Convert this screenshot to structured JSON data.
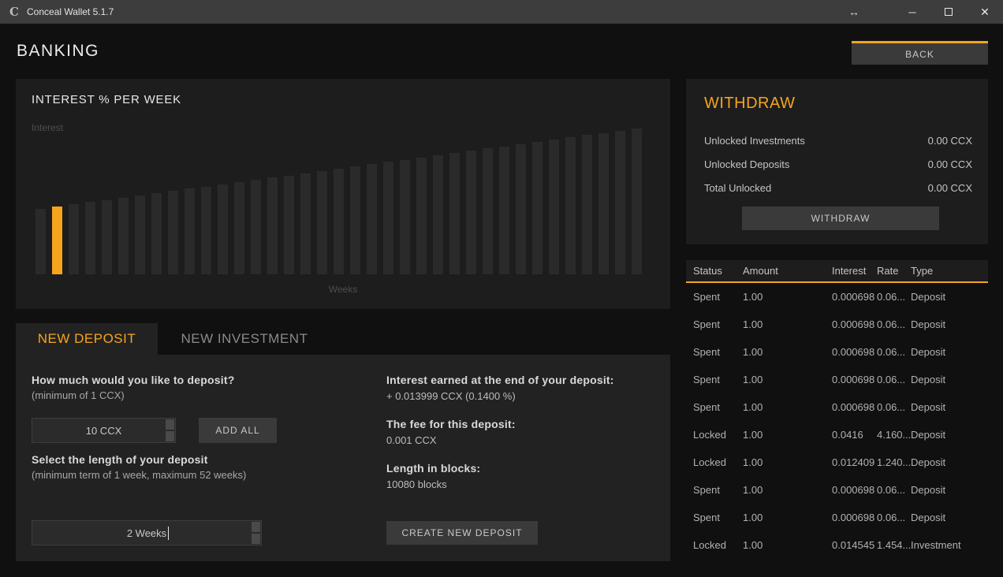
{
  "window": {
    "title": "Conceal Wallet 5.1.7",
    "logo": "C",
    "resize_icon": "↔",
    "minimize_icon": "─",
    "close_icon": "✕"
  },
  "header": {
    "title": "BANKING",
    "back_label": "BACK"
  },
  "chart": {
    "title": "INTEREST % PER WEEK",
    "ylabel": "Interest",
    "xlabel": "Weeks"
  },
  "chart_data": {
    "type": "bar",
    "title": "INTEREST % PER WEEK",
    "xlabel": "Weeks",
    "ylabel": "Interest",
    "axis_tick_labels_visible": false,
    "highlighted_week": 2,
    "highlight_color": "#f7a41d",
    "bar_color": "#2a2a2a",
    "weeks": [
      1,
      2,
      3,
      4,
      5,
      6,
      7,
      8,
      9,
      10,
      11,
      12,
      13,
      14,
      15,
      16,
      17,
      18,
      19,
      20,
      21,
      22,
      23,
      24,
      25,
      26,
      27,
      28,
      29,
      30,
      31,
      32,
      33,
      34,
      35,
      36,
      37
    ],
    "values": [
      0.83,
      0.858,
      0.887,
      0.915,
      0.943,
      0.972,
      1.0,
      1.028,
      1.057,
      1.085,
      1.113,
      1.142,
      1.17,
      1.198,
      1.227,
      1.255,
      1.283,
      1.312,
      1.34,
      1.368,
      1.397,
      1.425,
      1.453,
      1.482,
      1.51,
      1.538,
      1.567,
      1.595,
      1.623,
      1.652,
      1.68,
      1.708,
      1.737,
      1.765,
      1.793,
      1.822,
      1.85
    ]
  },
  "withdraw": {
    "title": "WITHDRAW",
    "rows": [
      {
        "label": "Unlocked Investments",
        "value": "0.00 CCX"
      },
      {
        "label": "Unlocked Deposits",
        "value": "0.00 CCX"
      },
      {
        "label": "Total Unlocked",
        "value": "0.00 CCX"
      }
    ],
    "button_label": "WITHDRAW"
  },
  "deposits_table": {
    "columns": [
      "Status",
      "Amount",
      "Interest",
      "Rate",
      "Type"
    ],
    "rows": [
      {
        "status": "Spent",
        "amount": "1.00",
        "interest": "0.000698",
        "rate": "0.06...",
        "type": "Deposit"
      },
      {
        "status": "Spent",
        "amount": "1.00",
        "interest": "0.000698",
        "rate": "0.06...",
        "type": "Deposit"
      },
      {
        "status": "Spent",
        "amount": "1.00",
        "interest": "0.000698",
        "rate": "0.06...",
        "type": "Deposit"
      },
      {
        "status": "Spent",
        "amount": "1.00",
        "interest": "0.000698",
        "rate": "0.06...",
        "type": "Deposit"
      },
      {
        "status": "Spent",
        "amount": "1.00",
        "interest": "0.000698",
        "rate": "0.06...",
        "type": "Deposit"
      },
      {
        "status": "Locked",
        "amount": "1.00",
        "interest": "0.0416",
        "rate": "4.160...",
        "type": "Deposit"
      },
      {
        "status": "Locked",
        "amount": "1.00",
        "interest": "0.012409",
        "rate": "1.240...",
        "type": "Deposit"
      },
      {
        "status": "Spent",
        "amount": "1.00",
        "interest": "0.000698",
        "rate": "0.06...",
        "type": "Deposit"
      },
      {
        "status": "Spent",
        "amount": "1.00",
        "interest": "0.000698",
        "rate": "0.06...",
        "type": "Deposit"
      },
      {
        "status": "Locked",
        "amount": "1.00",
        "interest": "0.014545",
        "rate": "1.454...",
        "type": "Investment"
      }
    ]
  },
  "tabs": {
    "new_deposit": "NEW DEPOSIT",
    "new_investment": "NEW INVESTMENT"
  },
  "deposit_form": {
    "amount_label": "How much would you like to deposit?",
    "amount_hint": "(minimum of 1 CCX)",
    "amount_value": "10 CCX",
    "add_all_label": "ADD ALL",
    "length_label": "Select the length of your deposit",
    "length_hint": "(minimum term of 1 week, maximum 52 weeks)",
    "length_value": "2 Weeks",
    "interest_label": "Interest earned at the end of your deposit:",
    "interest_value": "+ 0.013999 CCX (0.1400 %)",
    "fee_label": "The fee for this deposit:",
    "fee_value": "0.001 CCX",
    "blocks_label": "Length in blocks:",
    "blocks_value": "10080 blocks",
    "create_label": "CREATE NEW DEPOSIT"
  },
  "colors": {
    "accent": "#f7a41d",
    "page_bg": "#101010",
    "panel_bg": "#1d1d1d",
    "form_bg": "#222222",
    "button_bg": "#3a3a3a",
    "titlebar_bg": "#3d3d3d"
  }
}
